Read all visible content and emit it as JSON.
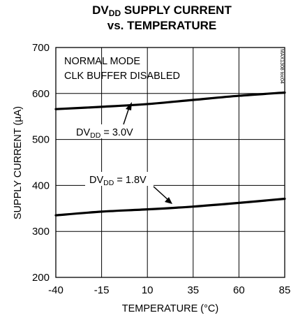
{
  "chart_data": {
    "type": "line",
    "title_main": "DV",
    "title_sub": "DD",
    "title_rest": " SUPPLY CURRENT",
    "title_line2": "vs. TEMPERATURE",
    "xlabel": "TEMPERATURE (°C)",
    "ylabel": "SUPPLY CURRENT (µA)",
    "xlim": [
      -40,
      85
    ],
    "ylim": [
      200,
      700
    ],
    "x_ticks": [
      -40,
      -15,
      10,
      35,
      60,
      85
    ],
    "y_ticks": [
      200,
      300,
      400,
      500,
      600,
      700
    ],
    "grid": true,
    "notes": [
      "NORMAL MODE",
      "CLK BUFFER DISABLED"
    ],
    "part_number": "MAX1308 toc04",
    "series": [
      {
        "label_main": "DV",
        "label_sub": "DD",
        "label_rest": " = 3.0V",
        "x": [
          -40,
          -15,
          10,
          35,
          60,
          85
        ],
        "y": [
          566,
          571,
          577,
          586,
          595,
          602
        ]
      },
      {
        "label_main": "DV",
        "label_sub": "DD",
        "label_rest": " = 1.8V",
        "x": [
          -40,
          -15,
          10,
          35,
          60,
          85
        ],
        "y": [
          335,
          343,
          348,
          354,
          362,
          371
        ]
      }
    ]
  }
}
